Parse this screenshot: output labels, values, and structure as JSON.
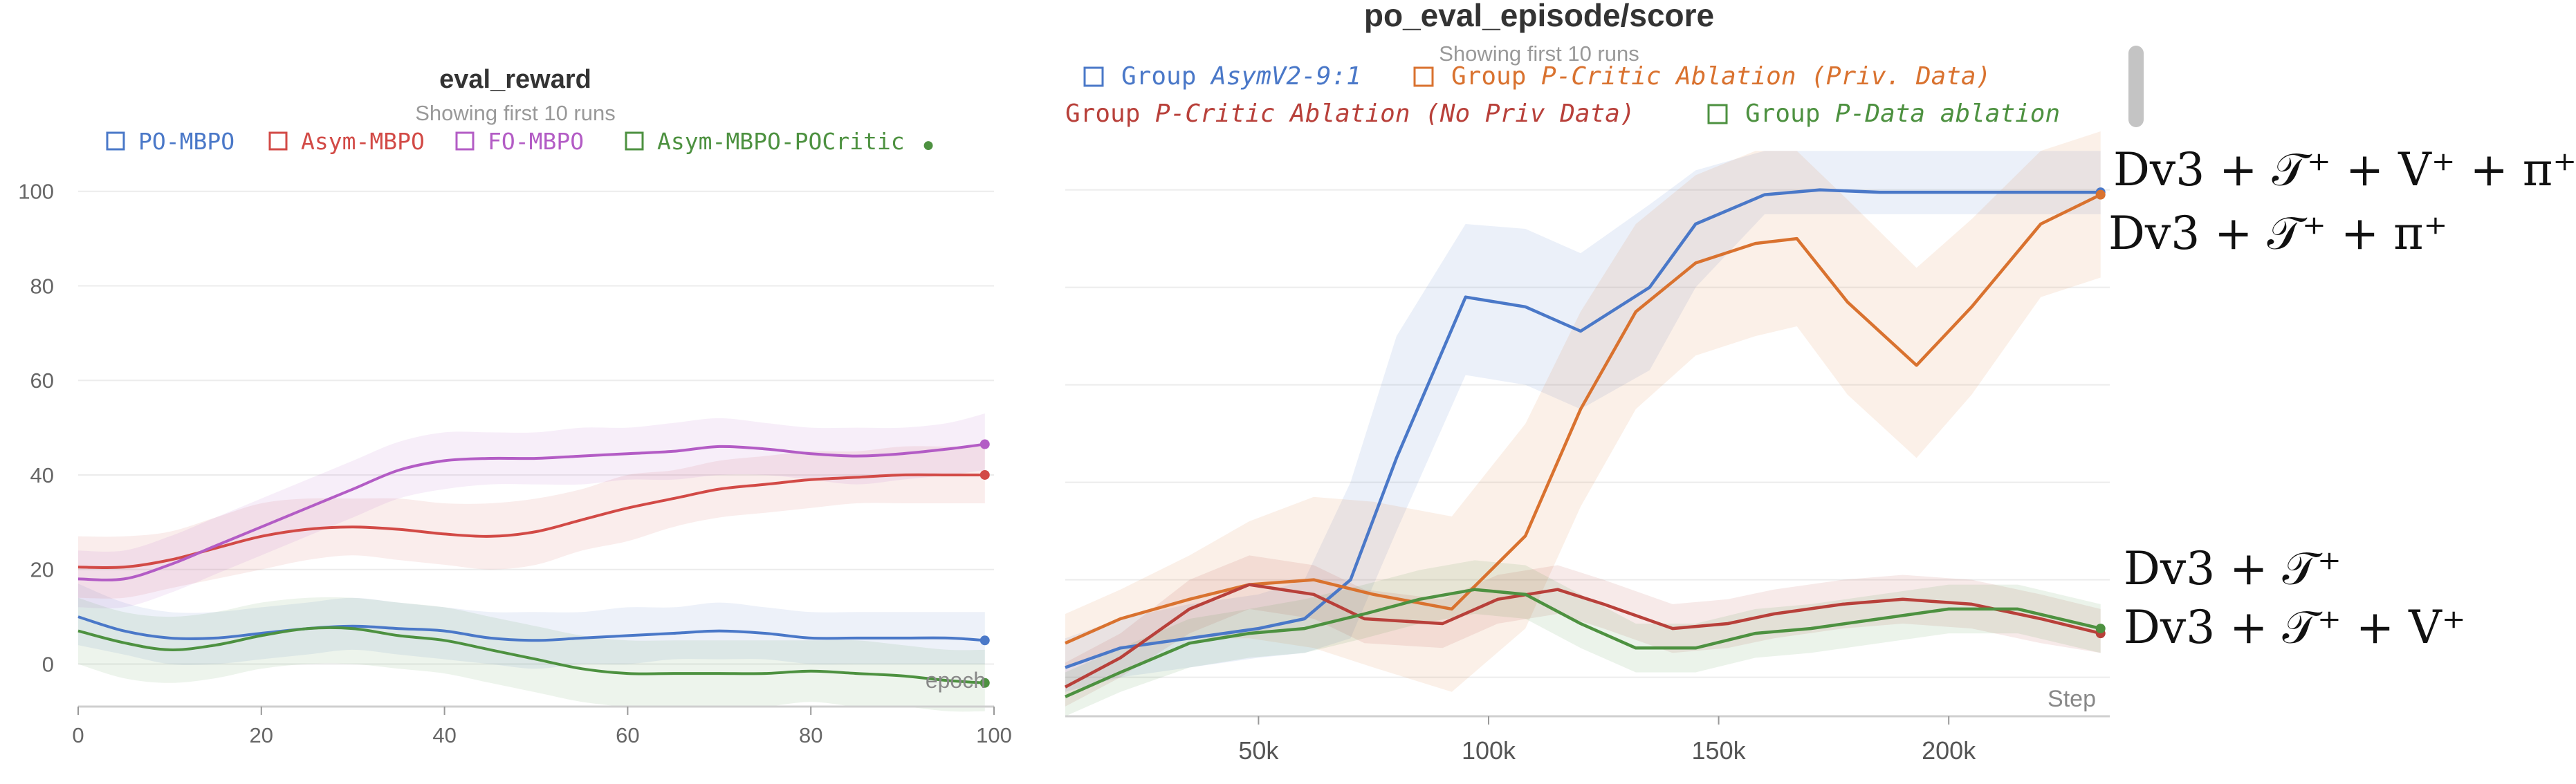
{
  "chart_data": [
    {
      "type": "line",
      "title": "eval_reward",
      "subtitle": "Showing first 10 runs",
      "xlabel": "epoch",
      "ylabel": "",
      "xlim": [
        0,
        100
      ],
      "ylim": [
        -9,
        108
      ],
      "xticks": [
        0,
        20,
        40,
        60,
        80,
        100
      ],
      "yticks": [
        0,
        20,
        40,
        60,
        80,
        100
      ],
      "grid": true,
      "legend_position": "top",
      "series": [
        {
          "name": "PO-MBPO",
          "color": "#4a78c8",
          "x": [
            0,
            5,
            10,
            15,
            20,
            25,
            30,
            35,
            40,
            45,
            50,
            55,
            60,
            65,
            70,
            75,
            80,
            85,
            90,
            95,
            99
          ],
          "y": [
            10,
            7,
            5.5,
            5.5,
            6.5,
            7.5,
            8,
            7.5,
            7,
            5.5,
            5,
            5.5,
            6,
            6.5,
            7,
            6.5,
            5.5,
            5.5,
            5.5,
            5.5,
            5
          ],
          "lower": [
            4,
            2,
            0,
            0,
            1,
            2,
            3,
            2,
            1,
            0,
            -1,
            0,
            0,
            1,
            1,
            1,
            0,
            0,
            0,
            0,
            0
          ],
          "upper": [
            17,
            13,
            11,
            11,
            12,
            13,
            14,
            13,
            12,
            11,
            11,
            11,
            12,
            12,
            13,
            12,
            11,
            11,
            11,
            11,
            11
          ]
        },
        {
          "name": "Asym-MBPO",
          "color": "#d24a46",
          "x": [
            0,
            5,
            10,
            15,
            20,
            25,
            30,
            35,
            40,
            45,
            50,
            55,
            60,
            65,
            70,
            75,
            80,
            85,
            90,
            95,
            99
          ],
          "y": [
            20.5,
            20.5,
            22,
            24.5,
            27,
            28.5,
            29,
            28.5,
            27.5,
            27,
            28,
            30.5,
            33,
            35,
            37,
            38,
            39,
            39.5,
            40,
            40,
            40
          ],
          "lower": [
            14,
            14,
            16,
            18,
            20,
            22,
            23,
            22,
            21,
            20,
            21,
            24,
            26,
            29,
            31,
            32,
            33,
            34,
            34,
            34,
            34
          ],
          "upper": [
            27,
            27,
            28,
            31,
            34,
            35,
            35,
            35,
            34,
            34,
            35,
            37,
            40,
            41,
            43,
            44,
            45,
            45,
            46,
            46,
            46
          ]
        },
        {
          "name": "FO-MBPO",
          "color": "#b35cc5",
          "x": [
            0,
            5,
            10,
            15,
            20,
            25,
            30,
            35,
            40,
            45,
            50,
            55,
            60,
            65,
            70,
            75,
            80,
            85,
            90,
            95,
            99
          ],
          "y": [
            18,
            18,
            21,
            25,
            29,
            33,
            37,
            41,
            43,
            43.5,
            43.5,
            44,
            44.5,
            45,
            46,
            45.5,
            44.5,
            44,
            44.5,
            45.5,
            46.5
          ],
          "lower": [
            12,
            12,
            15,
            19,
            23,
            27,
            31,
            35,
            37,
            38,
            38,
            38,
            39,
            39,
            40,
            40,
            39,
            38,
            39,
            40,
            41
          ],
          "upper": [
            24,
            24,
            27,
            31,
            35,
            39,
            43,
            47,
            49,
            49,
            49,
            50,
            50,
            51,
            52,
            51,
            50,
            50,
            50,
            51,
            53
          ]
        },
        {
          "name": "Asym-MBPO-POCritic",
          "color": "#4d9140",
          "x": [
            0,
            5,
            10,
            15,
            20,
            25,
            30,
            35,
            40,
            45,
            50,
            55,
            60,
            65,
            70,
            75,
            80,
            85,
            90,
            95,
            99
          ],
          "y": [
            7,
            4.5,
            3,
            4,
            6,
            7.5,
            7.5,
            6,
            5,
            3,
            1,
            -1,
            -2,
            -2,
            -2,
            -2,
            -1.5,
            -2,
            -2.5,
            -3.5,
            -4
          ],
          "lower": [
            0,
            -3,
            -4,
            -3,
            -1,
            0,
            0,
            -1,
            -2,
            -4,
            -6,
            -8,
            -9,
            -9,
            -9,
            -9,
            -8,
            -9,
            -9,
            -10,
            -10
          ],
          "upper": [
            14,
            11,
            10,
            11,
            13,
            14,
            14,
            13,
            12,
            10,
            8,
            6,
            5,
            5,
            5,
            5,
            5,
            5,
            4,
            3,
            3
          ]
        }
      ],
      "legend_marker": "●"
    },
    {
      "type": "line",
      "title": "po_eval_episode/score",
      "subtitle": "Showing first 10 runs",
      "xlabel": "Step",
      "ylabel": "",
      "xlim": [
        8000,
        235000
      ],
      "ylim": [
        -8,
        112
      ],
      "xticks": [
        50000,
        100000,
        150000,
        200000
      ],
      "xtick_labels": [
        "50k",
        "100k",
        "150k",
        "200k"
      ],
      "grid": true,
      "legend_position": "top",
      "series": [
        {
          "name_prefix": "Group",
          "name": "AsymV2-9:1",
          "color": "#4a78c8",
          "x": [
            8000,
            20000,
            35000,
            50000,
            60000,
            70000,
            80000,
            95000,
            108000,
            120000,
            135000,
            145000,
            160000,
            172000,
            185000,
            200000,
            215000,
            233000
          ],
          "y": [
            2,
            6,
            8,
            10,
            12,
            20,
            45,
            78,
            76,
            71,
            80,
            93,
            99,
            100,
            99.5,
            99.5,
            99.5,
            99.5
          ],
          "lower": [
            -3,
            0,
            2,
            4,
            5,
            8,
            30,
            62,
            60,
            55,
            63,
            80,
            95,
            95,
            95,
            95,
            95,
            95
          ],
          "upper": [
            8,
            12,
            15,
            17,
            20,
            40,
            70,
            93,
            92,
            87,
            97,
            104,
            108,
            108,
            108,
            108,
            108,
            108
          ]
        },
        {
          "name_prefix": "Group",
          "name": "P-Critic Ablation (Priv. Data)",
          "color": "#d9722f",
          "x": [
            8000,
            20000,
            35000,
            48000,
            62000,
            75000,
            92000,
            108000,
            120000,
            132000,
            145000,
            158000,
            167000,
            178000,
            193000,
            205000,
            220000,
            233000
          ],
          "y": [
            7,
            12,
            16,
            19,
            20,
            17,
            14,
            29,
            55,
            75,
            85,
            89,
            90,
            77,
            64,
            76,
            93,
            99
          ],
          "lower": [
            2,
            6,
            8,
            8,
            6,
            2,
            -3,
            10,
            35,
            55,
            66,
            70,
            72,
            58,
            45,
            58,
            78,
            82
          ],
          "upper": [
            13,
            18,
            25,
            32,
            37,
            36,
            33,
            52,
            75,
            93,
            103,
            108,
            108,
            98,
            84,
            94,
            108,
            112
          ]
        },
        {
          "name_prefix": "Group",
          "name": "P-Critic Ablation (No Priv Data)",
          "color": "#b8403a",
          "x": [
            8000,
            20000,
            35000,
            48000,
            62000,
            73000,
            90000,
            102000,
            115000,
            125000,
            140000,
            152000,
            162000,
            177000,
            190000,
            205000,
            220000,
            233000
          ],
          "y": [
            -2,
            4,
            14,
            19,
            17,
            12,
            11,
            16,
            18,
            15,
            10,
            11,
            13,
            15,
            16,
            15,
            12,
            9
          ],
          "lower": [
            -6,
            0,
            9,
            14,
            12,
            7,
            6,
            11,
            13,
            10,
            5,
            6,
            8,
            10,
            11,
            10,
            7,
            5
          ],
          "upper": [
            3,
            9,
            20,
            25,
            23,
            18,
            16,
            21,
            23,
            20,
            15,
            16,
            18,
            20,
            21,
            20,
            17,
            14
          ]
        },
        {
          "name_prefix": "Group",
          "name": "P-Data ablation",
          "color": "#4d9140",
          "x": [
            8000,
            20000,
            35000,
            48000,
            60000,
            73000,
            85000,
            97000,
            108000,
            120000,
            132000,
            145000,
            158000,
            170000,
            185000,
            200000,
            215000,
            233000
          ],
          "y": [
            -4,
            1,
            7,
            9,
            10,
            13,
            16,
            18,
            17,
            11,
            6,
            6,
            9,
            10,
            12,
            14,
            14,
            10
          ],
          "lower": [
            -8,
            -3,
            2,
            4,
            5,
            8,
            11,
            13,
            12,
            6,
            1,
            1,
            4,
            5,
            7,
            9,
            9,
            5
          ],
          "upper": [
            1,
            6,
            12,
            14,
            16,
            19,
            22,
            24,
            23,
            17,
            11,
            11,
            14,
            15,
            17,
            19,
            19,
            15
          ]
        }
      ],
      "annotations": [
        {
          "label": "Dv3 + 𝒯⁺ + V⁺ + π⁺",
          "series": "AsymV2-9:1"
        },
        {
          "label": "Dv3 + 𝒯⁺ + π⁺",
          "series": "P-Critic Ablation (Priv. Data)"
        },
        {
          "label": "Dv3 + 𝒯⁺",
          "series": "P-Data ablation"
        },
        {
          "label": "Dv3 + 𝒯⁺ + V⁺",
          "series": "P-Critic Ablation (No Priv Data)"
        }
      ]
    }
  ]
}
